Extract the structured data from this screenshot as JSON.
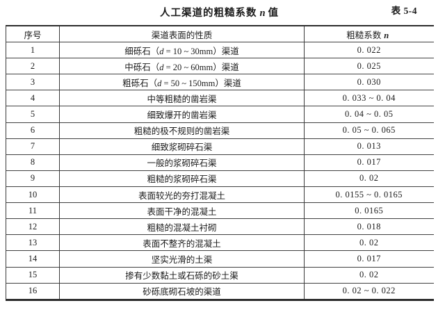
{
  "page": {
    "title": {
      "prefix": "人工渠道的粗糙系数",
      "var": "n",
      "suffix": "值"
    },
    "table_label": "表 5-4"
  },
  "colors": {
    "paper": "#ffffff",
    "rule_dark": "#2b2b2b",
    "rule": "#3a3a3a",
    "text": "#1b1b1b"
  },
  "table": {
    "headers": {
      "index": "序号",
      "surface": "渠道表面的性质",
      "coeff_prefix": "粗糙系数",
      "coeff_var": "n"
    },
    "rows": [
      {
        "no": "1",
        "surface_prefix": "细砾石（",
        "surface_var": "d",
        "surface_suffix": " = 10 ~ 30mm）渠道",
        "n": "0. 022"
      },
      {
        "no": "2",
        "surface_prefix": "中砾石（",
        "surface_var": "d",
        "surface_suffix": " = 20 ~ 60mm）渠道",
        "n": "0. 025"
      },
      {
        "no": "3",
        "surface_prefix": "粗砾石（",
        "surface_var": "d",
        "surface_suffix": " = 50 ~ 150mm）渠道",
        "n": "0. 030"
      },
      {
        "no": "4",
        "surface": "中等粗糙的凿岩渠",
        "n": "0. 033 ~ 0. 04"
      },
      {
        "no": "5",
        "surface": "细致爆开的凿岩渠",
        "n": "0. 04 ~ 0. 05"
      },
      {
        "no": "6",
        "surface": "粗糙的极不规则的凿岩渠",
        "n": "0. 05 ~ 0. 065"
      },
      {
        "no": "7",
        "surface": "细致浆砌碎石渠",
        "n": "0. 013"
      },
      {
        "no": "8",
        "surface": "一般的浆砌碎石渠",
        "n": "0. 017"
      },
      {
        "no": "9",
        "surface": "粗糙的浆砌碎石渠",
        "n": "0. 02"
      },
      {
        "no": "10",
        "surface": "表面较光的夯打混凝土",
        "n": "0. 0155 ~ 0. 0165"
      },
      {
        "no": "11",
        "surface": "表面干净的混凝土",
        "n": "0. 0165"
      },
      {
        "no": "12",
        "surface": "粗糙的混凝土衬砌",
        "n": "0. 018"
      },
      {
        "no": "13",
        "surface": "表面不整齐的混凝土",
        "n": "0. 02"
      },
      {
        "no": "14",
        "surface": "坚实光滑的土渠",
        "n": "0. 017"
      },
      {
        "no": "15",
        "surface": "掺有少数黏土或石砾的砂土渠",
        "n": "0. 02"
      },
      {
        "no": "16",
        "surface": "砂砾底砌石坡的渠道",
        "n": "0. 02 ~ 0. 022"
      }
    ]
  }
}
